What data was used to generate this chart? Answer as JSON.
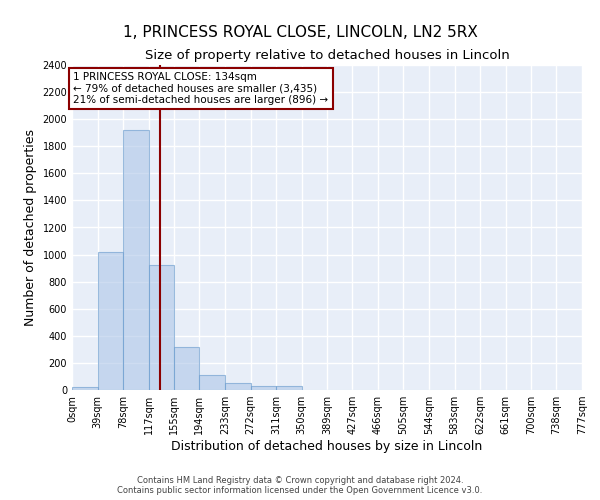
{
  "title": "1, PRINCESS ROYAL CLOSE, LINCOLN, LN2 5RX",
  "subtitle": "Size of property relative to detached houses in Lincoln",
  "xlabel": "Distribution of detached houses by size in Lincoln",
  "ylabel": "Number of detached properties",
  "bin_edges": [
    0,
    39,
    78,
    117,
    155,
    194,
    233,
    272,
    311,
    350,
    389,
    427,
    466,
    505,
    544,
    583,
    622,
    661,
    700,
    738,
    777
  ],
  "bin_labels": [
    "0sqm",
    "39sqm",
    "78sqm",
    "117sqm",
    "155sqm",
    "194sqm",
    "233sqm",
    "272sqm",
    "311sqm",
    "350sqm",
    "389sqm",
    "427sqm",
    "466sqm",
    "505sqm",
    "544sqm",
    "583sqm",
    "622sqm",
    "661sqm",
    "700sqm",
    "738sqm",
    "777sqm"
  ],
  "bar_heights": [
    20,
    1020,
    1920,
    920,
    320,
    110,
    50,
    30,
    30,
    0,
    0,
    0,
    0,
    0,
    0,
    0,
    0,
    0,
    0,
    0
  ],
  "bar_color": "#aec6e8",
  "bar_edge_color": "#6699cc",
  "bar_alpha": 0.6,
  "background_color": "#e8eef8",
  "grid_color": "#ffffff",
  "vline_x": 134,
  "vline_color": "#8b0000",
  "ylim": [
    0,
    2400
  ],
  "yticks": [
    0,
    200,
    400,
    600,
    800,
    1000,
    1200,
    1400,
    1600,
    1800,
    2000,
    2200,
    2400
  ],
  "annotation_title": "1 PRINCESS ROYAL CLOSE: 134sqm",
  "annotation_line1": "← 79% of detached houses are smaller (3,435)",
  "annotation_line2": "21% of semi-detached houses are larger (896) →",
  "annotation_box_color": "#8b0000",
  "footer_line1": "Contains HM Land Registry data © Crown copyright and database right 2024.",
  "footer_line2": "Contains public sector information licensed under the Open Government Licence v3.0.",
  "title_fontsize": 11,
  "subtitle_fontsize": 9.5,
  "ylabel_fontsize": 9,
  "xlabel_fontsize": 9,
  "tick_fontsize": 7,
  "annotation_fontsize": 7.5,
  "footer_fontsize": 6
}
